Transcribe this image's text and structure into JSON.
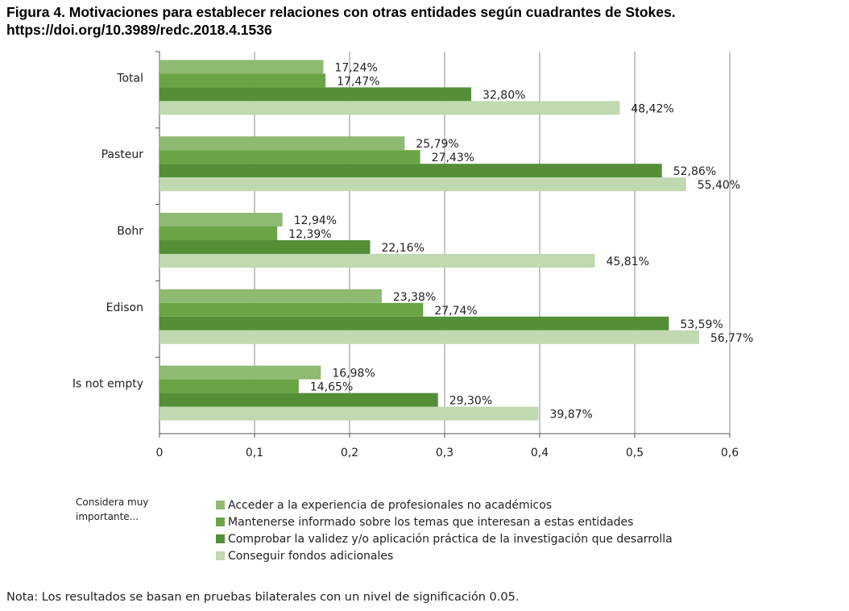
{
  "figure": {
    "title_line1": "Figura 4. Motivaciones para establecer relaciones con otras entidades según cuadrantes de Stokes.",
    "title_line2": "https://doi.org/10.3989/redc.2018.4.1536"
  },
  "legend_title": "Considera muy importante...",
  "note": "Nota: Los resultados se basan en pruebas bilaterales con un nivel de significación 0.05.",
  "colors": {
    "series1": "#8fba72",
    "series2": "#6aa545",
    "series3": "#548f38",
    "series4": "#c0d9b1",
    "grid": "#8c8c8c",
    "axis": "#555555"
  },
  "chart_data": {
    "type": "bar",
    "orientation": "horizontal",
    "categories": [
      "Total",
      "Pasteur",
      "Bohr",
      "Edison",
      "Is not empty"
    ],
    "series": [
      {
        "name": "Acceder a la experiencia de profesionales no académicos",
        "values": [
          0.1724,
          0.2579,
          0.1294,
          0.2338,
          0.1698
        ],
        "labels": [
          "17,24%",
          "25,79%",
          "12,94%",
          "23,38%",
          "16,98%"
        ]
      },
      {
        "name": "Mantenerse informado sobre los temas que interesan a  estas entidades",
        "values": [
          0.1747,
          0.2743,
          0.1239,
          0.2774,
          0.1465
        ],
        "labels": [
          "17,47%",
          "27,43%",
          "12,39%",
          "27,74%",
          "14,65%"
        ]
      },
      {
        "name": "Comprobar la validez y/o aplicación práctica de la investigación que desarrolla",
        "values": [
          0.328,
          0.5286,
          0.2216,
          0.5359,
          0.293
        ],
        "labels": [
          "32,80%",
          "52,86%",
          "22,16%",
          "53,59%",
          "29,30%"
        ]
      },
      {
        "name": "Conseguir fondos adicionales",
        "values": [
          0.4842,
          0.554,
          0.4581,
          0.5677,
          0.3987
        ],
        "labels": [
          "48,42%",
          "55,40%",
          "45,81%",
          "56,77%",
          "39,87%"
        ]
      }
    ],
    "x_ticks": [
      "0",
      "0,1",
      "0,2",
      "0,3",
      "0,4",
      "0,5",
      "0,6"
    ],
    "xlim": [
      0,
      0.6
    ],
    "grid": true,
    "legend_position": "bottom"
  }
}
